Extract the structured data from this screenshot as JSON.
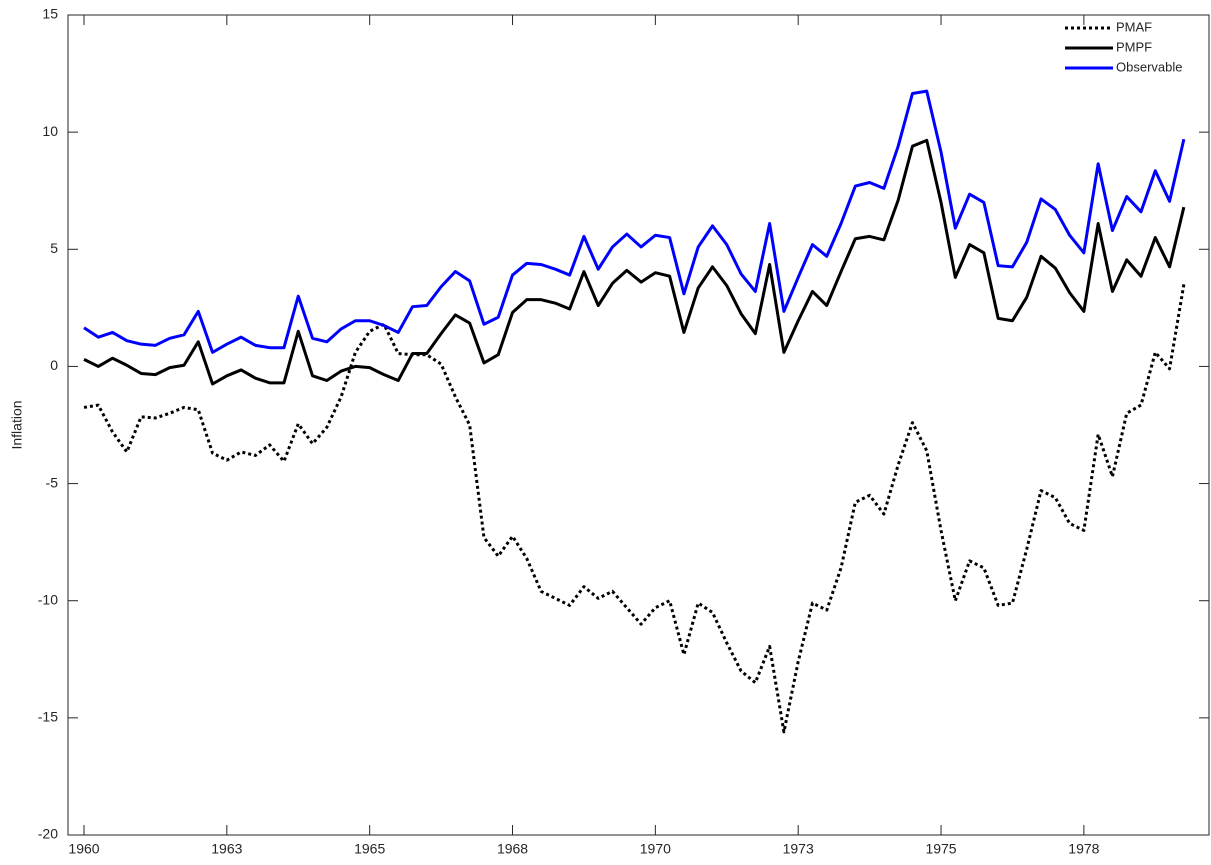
{
  "chart_data": {
    "type": "line",
    "y_label": "Inflation",
    "x": [
      1960,
      1960.25,
      1960.5,
      1960.75,
      1961,
      1961.25,
      1961.5,
      1961.75,
      1962,
      1962.25,
      1962.5,
      1962.75,
      1963,
      1963.25,
      1963.5,
      1963.75,
      1964,
      1964.25,
      1964.5,
      1964.75,
      1965,
      1965.25,
      1965.5,
      1965.75,
      1966,
      1966.25,
      1966.5,
      1966.75,
      1967,
      1967.25,
      1967.5,
      1967.75,
      1968,
      1968.25,
      1968.5,
      1968.75,
      1969,
      1969.25,
      1969.5,
      1969.75,
      1970,
      1970.25,
      1970.5,
      1970.75,
      1971,
      1971.25,
      1971.5,
      1971.75,
      1972,
      1972.25,
      1972.5,
      1972.75,
      1973,
      1973.25,
      1973.5,
      1973.75,
      1974,
      1974.25,
      1974.5,
      1974.75,
      1975,
      1975.25,
      1975.5,
      1975.75,
      1976,
      1976.25,
      1976.5,
      1976.75,
      1977,
      1977.25,
      1977.5,
      1977.75,
      1978,
      1978.25,
      1978.5,
      1978.75,
      1979,
      1979.25
    ],
    "series": [
      {
        "name": "PMAF",
        "color": "#000000",
        "dash": "dotted",
        "values": [
          -1.75,
          -1.65,
          -2.8,
          -3.65,
          -2.15,
          -2.2,
          -2.0,
          -1.75,
          -1.85,
          -3.7,
          -4.0,
          -3.65,
          -3.8,
          -3.35,
          -4.05,
          -2.45,
          -3.3,
          -2.6,
          -1.3,
          0.6,
          1.5,
          1.8,
          0.55,
          0.5,
          0.5,
          0.1,
          -1.3,
          -2.5,
          -7.3,
          -8.1,
          -7.25,
          -8.2,
          -9.6,
          -9.9,
          -10.2,
          -9.4,
          -9.9,
          -9.6,
          -10.3,
          -11.0,
          -10.3,
          -10.0,
          -12.3,
          -10.1,
          -10.5,
          -11.8,
          -13.0,
          -13.5,
          -11.95,
          -15.6,
          -12.6,
          -10.1,
          -10.4,
          -8.6,
          -5.8,
          -5.5,
          -6.3,
          -4.2,
          -2.4,
          -3.6,
          -7.0,
          -10.0,
          -8.3,
          -8.6,
          -10.2,
          -10.1,
          -7.8,
          -5.3,
          -5.6,
          -6.7,
          -7.0,
          -2.9,
          -4.7,
          -2.0,
          -1.65,
          0.6,
          -0.1,
          3.5
        ]
      },
      {
        "name": "PMPF",
        "color": "#000000",
        "dash": "solid",
        "values": [
          0.3,
          0.0,
          0.35,
          0.05,
          -0.3,
          -0.35,
          -0.05,
          0.05,
          1.05,
          -0.75,
          -0.4,
          -0.15,
          -0.5,
          -0.7,
          -0.7,
          1.5,
          -0.4,
          -0.6,
          -0.2,
          0.0,
          -0.05,
          -0.35,
          -0.6,
          0.55,
          0.55,
          1.4,
          2.2,
          1.85,
          0.15,
          0.5,
          2.3,
          2.85,
          2.85,
          2.7,
          2.45,
          4.05,
          2.6,
          3.55,
          4.1,
          3.6,
          4.0,
          3.85,
          1.45,
          3.35,
          4.25,
          3.45,
          2.25,
          1.4,
          4.35,
          0.6,
          1.95,
          3.2,
          2.6,
          4.05,
          5.45,
          5.55,
          5.4,
          7.1,
          9.4,
          9.65,
          7.0,
          3.8,
          5.2,
          4.85,
          2.05,
          1.95,
          2.95,
          4.7,
          4.2,
          3.15,
          2.35,
          6.1,
          3.2,
          4.55,
          3.85,
          5.5,
          4.25,
          6.8
        ]
      },
      {
        "name": "Observable",
        "color": "#0000ff",
        "dash": "solid",
        "values": [
          1.65,
          1.25,
          1.45,
          1.1,
          0.95,
          0.9,
          1.2,
          1.35,
          2.35,
          0.6,
          0.95,
          1.25,
          0.9,
          0.8,
          0.8,
          3.0,
          1.2,
          1.05,
          1.6,
          1.95,
          1.95,
          1.75,
          1.45,
          2.55,
          2.6,
          3.4,
          4.05,
          3.65,
          1.8,
          2.1,
          3.9,
          4.4,
          4.35,
          4.15,
          3.9,
          5.55,
          4.15,
          5.1,
          5.65,
          5.1,
          5.6,
          5.5,
          3.1,
          5.1,
          6.0,
          5.2,
          3.95,
          3.2,
          6.1,
          2.35,
          3.8,
          5.2,
          4.7,
          6.1,
          7.7,
          7.85,
          7.6,
          9.4,
          11.65,
          11.75,
          9.15,
          5.9,
          7.35,
          7.0,
          4.3,
          4.25,
          5.3,
          7.15,
          6.7,
          5.6,
          4.85,
          8.65,
          5.8,
          7.25,
          6.6,
          8.35,
          7.05,
          9.7
        ]
      }
    ],
    "xlim": [
      1959.72,
      1979.69
    ],
    "xticks": [
      {
        "value": 1960,
        "label": "1960"
      },
      {
        "value": 1962.5,
        "label": "1963"
      },
      {
        "value": 1965,
        "label": "1965"
      },
      {
        "value": 1967.5,
        "label": "1968"
      },
      {
        "value": 1970,
        "label": "1970"
      },
      {
        "value": 1972.5,
        "label": "1973"
      },
      {
        "value": 1975,
        "label": "1975"
      },
      {
        "value": 1977.5,
        "label": "1978"
      }
    ],
    "ylim": [
      -20,
      15
    ],
    "yticks": [
      -20,
      -15,
      -10,
      -5,
      0,
      5,
      10,
      15
    ],
    "grid": false,
    "legend": "top-right"
  }
}
